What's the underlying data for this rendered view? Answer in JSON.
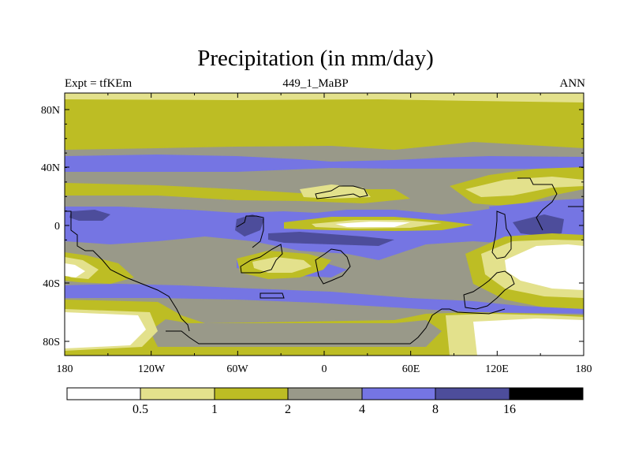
{
  "title": "Precipitation (in mm/day)",
  "subtitle_left": "Expt = tfKEm",
  "subtitle_center": "449_1_MaBP",
  "subtitle_right": "ANN",
  "lat_labels": [
    "80N",
    "40N",
    "0",
    "40S",
    "80S"
  ],
  "lon_labels": [
    "180",
    "120W",
    "60W",
    "0",
    "60E",
    "120E",
    "180"
  ],
  "colorbar": {
    "colors": [
      "#ffffff",
      "#e3e18c",
      "#bdbd24",
      "#999989",
      "#7575e3",
      "#4d4d9b",
      "#000000"
    ],
    "labels": [
      "0.5",
      "1",
      "2",
      "4",
      "8",
      "16"
    ]
  }
}
